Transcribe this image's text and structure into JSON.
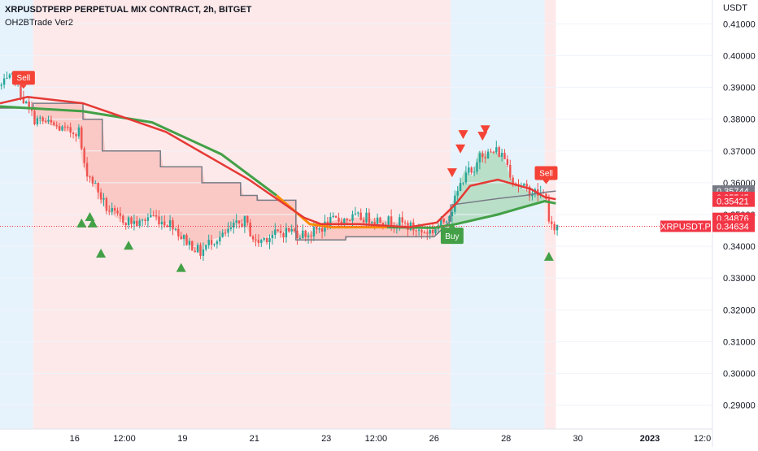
{
  "header": {
    "title": "XRPUSDTPERP PERPETUAL MIX CONTRACT, 2h, BITGET",
    "indicator": "OH2BTrade Ver2"
  },
  "colors": {
    "bull": "#26a69a",
    "bear": "#ef5350",
    "sell_bg": "#fde9e9",
    "buy_bg": "#e6f3fc",
    "slow_ma": "#43a047",
    "fast_ma": "#e53935",
    "trail": "#787b86"
  },
  "chart_data": {
    "type": "candlestick",
    "symbol": "XRPUSDT.P",
    "ylabel": "USDT",
    "ylim": [
      0.2825,
      0.4175
    ],
    "y_ticks": [
      "0.41000",
      "0.40000",
      "0.39000",
      "0.38000",
      "0.37000",
      "0.36000",
      "0.35000",
      "0.34000",
      "0.33000",
      "0.32000",
      "0.31000",
      "0.30000",
      "0.29000"
    ],
    "x_ticks": [
      {
        "label": "16",
        "t": 27
      },
      {
        "label": "12:00",
        "t": 45
      },
      {
        "label": "19",
        "t": 66
      },
      {
        "label": "21",
        "t": 92
      },
      {
        "label": "23",
        "t": 118
      },
      {
        "label": "12:00",
        "t": 136
      },
      {
        "label": "26",
        "t": 157
      },
      {
        "label": "28",
        "t": 183
      },
      {
        "label": "30",
        "t": 209
      },
      {
        "label": "2023",
        "t": 235
      },
      {
        "label": "12:0",
        "t": 254
      }
    ],
    "price_labels": [
      {
        "value": "0.35744",
        "price": 0.3574,
        "color": "#787b86"
      },
      {
        "value": "0.35545",
        "price": 0.3554,
        "color": "#f23645"
      },
      {
        "value": "0.35421",
        "price": 0.3542,
        "color": "#f23645"
      },
      {
        "value": "0.34876",
        "price": 0.3488,
        "color": "#f23645"
      },
      {
        "value": "0.34634",
        "price": 0.3463,
        "color": "#f23645"
      }
    ],
    "symbol_price": 0.3463,
    "regimes": [
      {
        "start": 0,
        "end": 12,
        "kind": "buy"
      },
      {
        "start": 12,
        "end": 163,
        "kind": "sell"
      },
      {
        "start": 163,
        "end": 197,
        "kind": "buy"
      },
      {
        "start": 197,
        "end": 201,
        "kind": "sell"
      }
    ],
    "anchors": [
      [
        0,
        0.3905
      ],
      [
        5,
        0.3935
      ],
      [
        8,
        0.386
      ],
      [
        12,
        0.38
      ],
      [
        16,
        0.379
      ],
      [
        20,
        0.3775
      ],
      [
        24,
        0.376
      ],
      [
        28,
        0.3765
      ],
      [
        30,
        0.365
      ],
      [
        34,
        0.359
      ],
      [
        38,
        0.352
      ],
      [
        42,
        0.349
      ],
      [
        46,
        0.348
      ],
      [
        50,
        0.347
      ],
      [
        54,
        0.35
      ],
      [
        58,
        0.348
      ],
      [
        62,
        0.347
      ],
      [
        65,
        0.343
      ],
      [
        68,
        0.341
      ],
      [
        72,
        0.338
      ],
      [
        76,
        0.342
      ],
      [
        80,
        0.343
      ],
      [
        84,
        0.346
      ],
      [
        88,
        0.348
      ],
      [
        92,
        0.341
      ],
      [
        96,
        0.343
      ],
      [
        100,
        0.344
      ],
      [
        104,
        0.345
      ],
      [
        108,
        0.344
      ],
      [
        112,
        0.344
      ],
      [
        116,
        0.346
      ],
      [
        120,
        0.348
      ],
      [
        124,
        0.3485
      ],
      [
        128,
        0.349
      ],
      [
        132,
        0.349
      ],
      [
        136,
        0.3485
      ],
      [
        140,
        0.348
      ],
      [
        144,
        0.3475
      ],
      [
        148,
        0.346
      ],
      [
        152,
        0.3445
      ],
      [
        156,
        0.345
      ],
      [
        160,
        0.348
      ],
      [
        163,
        0.352
      ],
      [
        165,
        0.357
      ],
      [
        168,
        0.364
      ],
      [
        171,
        0.362
      ],
      [
        173,
        0.37
      ],
      [
        176,
        0.369
      ],
      [
        179,
        0.37
      ],
      [
        182,
        0.368
      ],
      [
        185,
        0.361
      ],
      [
        188,
        0.3585
      ],
      [
        191,
        0.3575
      ],
      [
        194,
        0.3565
      ],
      [
        197,
        0.356
      ],
      [
        198,
        0.347
      ],
      [
        199,
        0.3455
      ],
      [
        201,
        0.3463
      ]
    ],
    "slow_ma": [
      [
        0,
        0.384
      ],
      [
        10,
        0.3835
      ],
      [
        30,
        0.3825
      ],
      [
        55,
        0.379
      ],
      [
        80,
        0.369
      ],
      [
        100,
        0.356
      ],
      [
        112,
        0.347
      ],
      [
        120,
        0.346
      ],
      [
        140,
        0.346
      ],
      [
        157,
        0.3458
      ],
      [
        165,
        0.347
      ],
      [
        180,
        0.35
      ],
      [
        190,
        0.3525
      ],
      [
        197,
        0.3542
      ],
      [
        201,
        0.3535
      ]
    ],
    "fast_ma": [
      [
        0,
        0.385
      ],
      [
        10,
        0.387
      ],
      [
        30,
        0.385
      ],
      [
        60,
        0.376
      ],
      [
        90,
        0.361
      ],
      [
        110,
        0.349
      ],
      [
        116,
        0.347
      ],
      [
        130,
        0.347
      ],
      [
        148,
        0.346
      ],
      [
        158,
        0.3475
      ],
      [
        165,
        0.3535
      ],
      [
        170,
        0.359
      ],
      [
        180,
        0.361
      ],
      [
        192,
        0.358
      ],
      [
        197,
        0.3555
      ],
      [
        201,
        0.3548
      ]
    ],
    "trail": [
      [
        0,
        0.3835
      ],
      [
        12,
        0.3835
      ],
      [
        12,
        0.385
      ],
      [
        30,
        0.385
      ],
      [
        30,
        0.38
      ],
      [
        37,
        0.38
      ],
      [
        37,
        0.37
      ],
      [
        58,
        0.37
      ],
      [
        58,
        0.365
      ],
      [
        73,
        0.365
      ],
      [
        73,
        0.36
      ],
      [
        87,
        0.36
      ],
      [
        87,
        0.356
      ],
      [
        93,
        0.356
      ],
      [
        93,
        0.3545
      ],
      [
        107,
        0.3545
      ],
      [
        107,
        0.342
      ],
      [
        125,
        0.342
      ],
      [
        125,
        0.343
      ],
      [
        157,
        0.343
      ],
      [
        163,
        0.348
      ],
      [
        163,
        0.353
      ],
      [
        180,
        0.355
      ],
      [
        190,
        0.356
      ],
      [
        197,
        0.357
      ],
      [
        201,
        0.3574
      ]
    ],
    "signals": [
      {
        "type": "sell-label",
        "t": 8,
        "text": "Sell"
      },
      {
        "type": "sell-label",
        "t": 197,
        "text": "Sell"
      },
      {
        "type": "buy-label",
        "t": 163,
        "text": "Buy"
      },
      {
        "type": "up",
        "t": 29,
        "price": 0.348
      },
      {
        "type": "up",
        "t": 32,
        "price": 0.35
      },
      {
        "type": "up",
        "t": 33,
        "price": 0.348
      },
      {
        "type": "up",
        "t": 36,
        "price": 0.3385
      },
      {
        "type": "up",
        "t": 46,
        "price": 0.341
      },
      {
        "type": "up",
        "t": 65,
        "price": 0.334
      },
      {
        "type": "up",
        "t": 198,
        "price": 0.3375
      },
      {
        "type": "down",
        "t": 163,
        "price": 0.3625
      },
      {
        "type": "down",
        "t": 166,
        "price": 0.37
      },
      {
        "type": "down",
        "t": 167,
        "price": 0.3745
      },
      {
        "type": "down",
        "t": 174,
        "price": 0.374
      },
      {
        "type": "down",
        "t": 175,
        "price": 0.376
      }
    ]
  }
}
